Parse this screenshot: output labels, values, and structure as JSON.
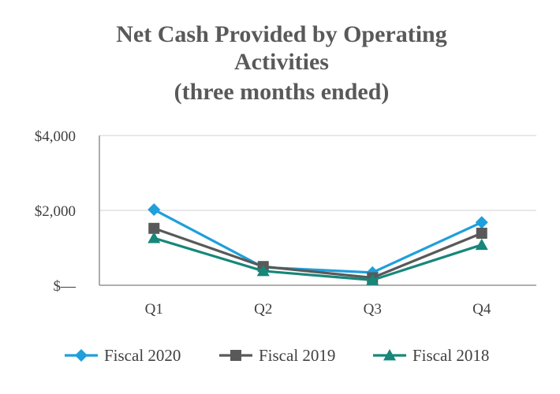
{
  "chart_data": {
    "type": "line",
    "title": [
      "Net Cash Provided by Operating",
      "Activities",
      "(three months ended)"
    ],
    "categories": [
      "Q1",
      "Q2",
      "Q3",
      "Q4"
    ],
    "ylim": [
      0,
      4000
    ],
    "yticks": [
      {
        "value": 0,
        "label": "$—"
      },
      {
        "value": 2000,
        "label": "$2,000"
      },
      {
        "value": 4000,
        "label": "$4,000"
      }
    ],
    "grid": true,
    "legend_position": "bottom",
    "series": [
      {
        "name": "Fiscal 2020",
        "values": [
          2020,
          480,
          340,
          1680
        ],
        "color": "#1F9FDB",
        "marker": "diamond"
      },
      {
        "name": "Fiscal 2019",
        "values": [
          1520,
          500,
          200,
          1390
        ],
        "color": "#595959",
        "marker": "square"
      },
      {
        "name": "Fiscal 2018",
        "values": [
          1260,
          380,
          140,
          1080
        ],
        "color": "#16877A",
        "marker": "triangle"
      }
    ]
  }
}
